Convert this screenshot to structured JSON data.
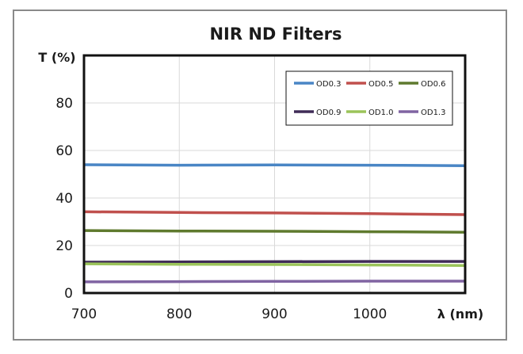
{
  "chart_data": {
    "type": "line",
    "title": "NIR ND Filters",
    "xlabel": "λ (nm)",
    "ylabel": "T (%)",
    "xlim": [
      700,
      1100
    ],
    "ylim": [
      0,
      100
    ],
    "x_ticks": [
      700,
      800,
      900,
      1000
    ],
    "y_ticks": [
      0,
      20,
      40,
      60,
      80
    ],
    "x_tick_labels": [
      "700",
      "800",
      "900",
      "1000"
    ],
    "y_tick_labels": [
      "0",
      "20",
      "40",
      "60",
      "80"
    ],
    "grid": true,
    "legend_position": "top-right",
    "series": [
      {
        "name": "OD0.3",
        "color": "#4a86c5",
        "x": [
          700,
          800,
          900,
          1000,
          1100
        ],
        "values": [
          54.0,
          53.8,
          53.9,
          53.8,
          53.6
        ]
      },
      {
        "name": "OD0.5",
        "color": "#c0504d",
        "x": [
          700,
          800,
          900,
          1000,
          1100
        ],
        "values": [
          34.2,
          33.9,
          33.7,
          33.4,
          33.0
        ]
      },
      {
        "name": "OD0.6",
        "color": "#5f7a2e",
        "x": [
          700,
          800,
          900,
          1000,
          1100
        ],
        "values": [
          26.3,
          26.1,
          26.0,
          25.8,
          25.6
        ]
      },
      {
        "name": "OD0.9",
        "color": "#3f2b57",
        "x": [
          700,
          800,
          900,
          1000,
          1100
        ],
        "values": [
          13.0,
          13.1,
          13.2,
          13.3,
          13.3
        ]
      },
      {
        "name": "OD1.0",
        "color": "#9bc45a",
        "x": [
          700,
          800,
          900,
          1000,
          1100
        ],
        "values": [
          12.3,
          12.1,
          12.0,
          11.8,
          11.6
        ]
      },
      {
        "name": "OD1.3",
        "color": "#8064a2",
        "x": [
          700,
          800,
          900,
          1000,
          1100
        ],
        "values": [
          4.7,
          4.8,
          4.9,
          5.0,
          5.0
        ]
      }
    ]
  }
}
